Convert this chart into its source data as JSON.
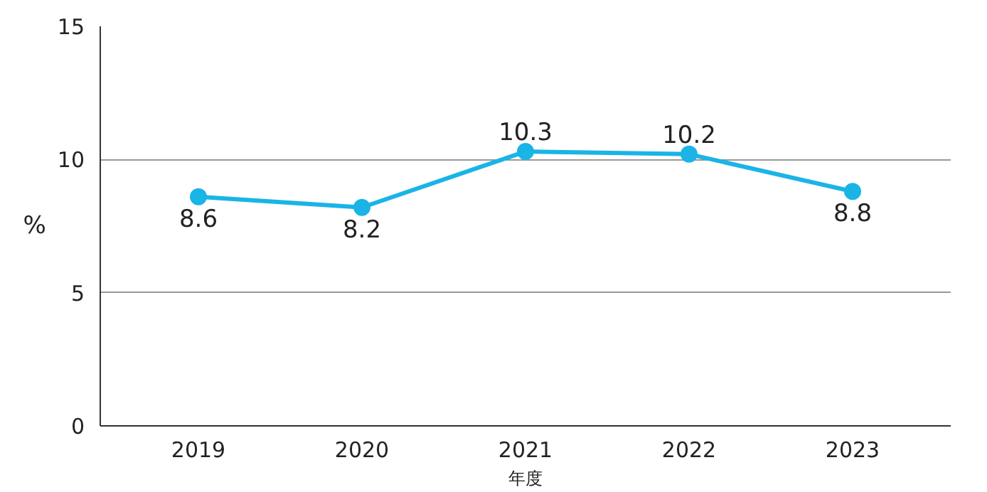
{
  "chart_data": {
    "type": "line",
    "xlabel": "年度",
    "ylabel": "%",
    "categories": [
      "2019",
      "2020",
      "2021",
      "2022",
      "2023"
    ],
    "series": [
      {
        "color": "#1ab4e6",
        "values": [
          8.6,
          8.2,
          10.3,
          10.2,
          8.8
        ]
      }
    ],
    "ylim": [
      0,
      15
    ],
    "yticks": [
      0,
      5,
      10,
      15
    ],
    "grid": "y",
    "data_labels": true,
    "marker": "circle",
    "line_style": "solid"
  }
}
